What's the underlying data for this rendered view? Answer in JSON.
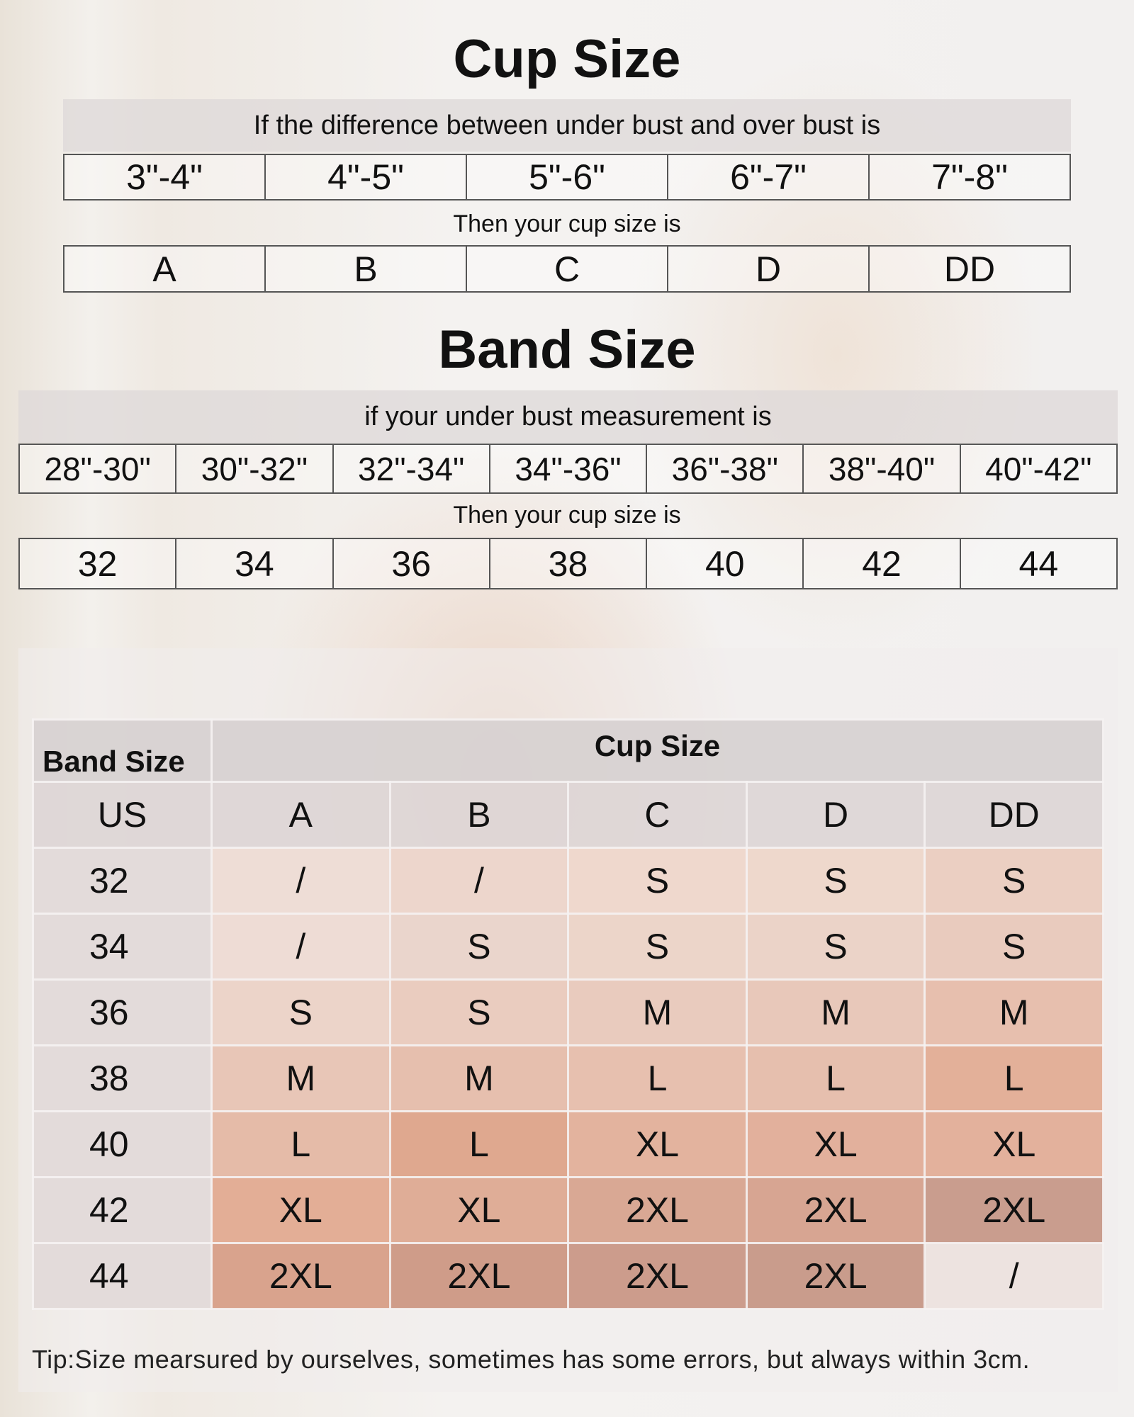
{
  "cup_section": {
    "title": "Cup Size",
    "prompt": "If the difference between under bust and over bust is",
    "ranges": [
      "3\"-4\"",
      "4\"-5\"",
      "5\"-6\"",
      "6\"-7\"",
      "7\"-8\""
    ],
    "then": "Then your cup size is",
    "cups": [
      "A",
      "B",
      "C",
      "D",
      "DD"
    ]
  },
  "band_section": {
    "title": "Band Size",
    "prompt": "if your under bust measurement is",
    "ranges": [
      "28\"-30\"",
      "30\"-32\"",
      "32\"-34\"",
      "34\"-36\"",
      "36\"-38\"",
      "38\"-40\"",
      "40\"-42\""
    ],
    "then": "Then your cup size is",
    "bands": [
      "32",
      "34",
      "36",
      "38",
      "40",
      "42",
      "44"
    ]
  },
  "size_table": {
    "band_header": "Band  Size",
    "cup_header": "Cup    Size",
    "columns": [
      "US",
      "A",
      "B",
      "C",
      "D",
      "DD"
    ],
    "rows": [
      {
        "band": "32",
        "sizes": [
          "/",
          "/",
          "S",
          "S",
          "S"
        ],
        "colors": [
          "#eeddd6",
          "#edd6cc",
          "#efd8cd",
          "#eed8cc",
          "#ebcfc2"
        ]
      },
      {
        "band": "34",
        "sizes": [
          "/",
          "S",
          "S",
          "S",
          "S"
        ],
        "colors": [
          "#eedcd5",
          "#ead5cc",
          "#ecd5c9",
          "#ebd3c8",
          "#e9cbbe"
        ]
      },
      {
        "band": "36",
        "sizes": [
          "S",
          "S",
          "M",
          "M",
          "M"
        ],
        "colors": [
          "#ecd4c9",
          "#eaccbf",
          "#e9cbbe",
          "#e8c8ba",
          "#e7bfae"
        ]
      },
      {
        "band": "38",
        "sizes": [
          "M",
          "M",
          "L",
          "L",
          "L"
        ],
        "colors": [
          "#e8c6b7",
          "#e6bfae",
          "#e7c0af",
          "#e6bfae",
          "#e3b099"
        ]
      },
      {
        "band": "40",
        "sizes": [
          "L",
          "L",
          "XL",
          "XL",
          "XL"
        ],
        "colors": [
          "#e5bba8",
          "#dfa88f",
          "#e3b39e",
          "#e2b09c",
          "#e3b19c"
        ]
      },
      {
        "band": "42",
        "sizes": [
          "XL",
          "XL",
          "2XL",
          "2XL",
          "2XL"
        ],
        "colors": [
          "#e3ae96",
          "#dfad97",
          "#d9a894",
          "#d7a592",
          "#c99d8e"
        ]
      },
      {
        "band": "44",
        "sizes": [
          "2XL",
          "2XL",
          "2XL",
          "2XL",
          "/"
        ],
        "colors": [
          "#d9a38d",
          "#cf9c89",
          "#cc9c8c",
          "#c99c8c",
          "#ede3e0"
        ]
      }
    ],
    "us_column_color": "#e3dbda"
  },
  "tip": "Tip:Size mearsured by ourselves, sometimes has some errors, but always within 3cm."
}
